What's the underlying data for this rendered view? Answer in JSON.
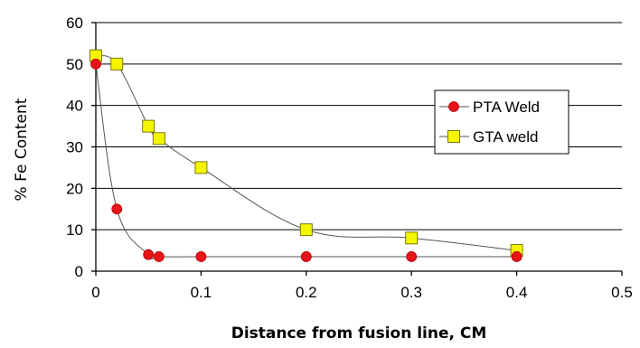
{
  "chart_data": {
    "type": "line",
    "title": "",
    "xlabel": "Distance from fusion line, CM",
    "ylabel": "% Fe Content",
    "xlim": [
      0,
      0.5
    ],
    "ylim": [
      0,
      60
    ],
    "xticks": [
      0,
      0.1,
      0.2,
      0.3,
      0.4,
      0.5
    ],
    "yticks": [
      0,
      10,
      20,
      30,
      40,
      50,
      60
    ],
    "xtick_labels": [
      "0",
      "0.1",
      "0.2",
      "0.3",
      "0.4",
      "0.5"
    ],
    "ytick_labels": [
      "0",
      "10",
      "20",
      "30",
      "40",
      "50",
      "60"
    ],
    "grid": "horizontal",
    "smooth": true,
    "legend_position": "right",
    "series": [
      {
        "name": "PTA Weld",
        "marker": "circle",
        "color": "#e8141a",
        "x": [
          0,
          0.02,
          0.05,
          0.06,
          0.1,
          0.2,
          0.3,
          0.4
        ],
        "y": [
          50,
          15,
          4,
          3.5,
          3.5,
          3.5,
          3.5,
          3.5
        ]
      },
      {
        "name": "GTA weld",
        "marker": "square",
        "color": "#f5f500",
        "x": [
          0,
          0.02,
          0.05,
          0.06,
          0.1,
          0.2,
          0.3,
          0.4
        ],
        "y": [
          52,
          50,
          35,
          32,
          25,
          10,
          8,
          5
        ]
      }
    ]
  }
}
